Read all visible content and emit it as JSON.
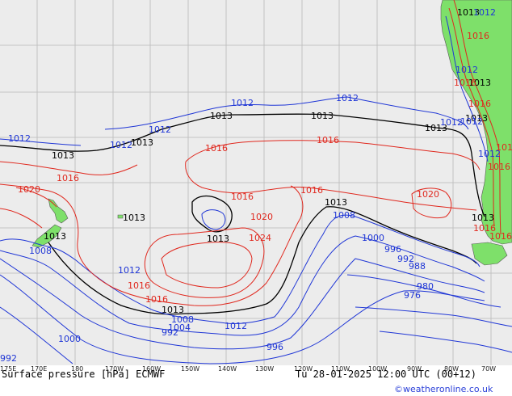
{
  "map": {
    "title": "Surface pressure [hPa] ECMWF",
    "valid_time": "Tu 28-01-2025 12:00 UTC (00+12)",
    "credit": "©weatheronline.co.uk",
    "longitude_ticks": [
      "175E",
      "170E",
      "180",
      "170W",
      "160W",
      "150W",
      "140W",
      "130W",
      "120W",
      "110W",
      "100W",
      "90W",
      "80W",
      "70W"
    ],
    "colors": {
      "ocean": "#ececec",
      "land": "#7ee06a",
      "grid": "#b8b8b8",
      "isobar_low": "#1f36d6",
      "isobar_mid": "#000000",
      "isobar_high": "#e0281e"
    },
    "isobar_labels": {
      "black": [
        "1013",
        "1013",
        "1013",
        "1013",
        "1013",
        "1013",
        "1013",
        "1013",
        "1013",
        "1013",
        "1013",
        "1013",
        "1013",
        "1013"
      ],
      "red": [
        "1016",
        "1016",
        "1016",
        "1016",
        "1020",
        "1016",
        "1020",
        "1024",
        "1016",
        "1016",
        "1016",
        "1016",
        "1020",
        "1016",
        "1016",
        "1016",
        "1016",
        "1016"
      ],
      "blue": [
        "1012",
        "1012",
        "1012",
        "1012",
        "1012",
        "1012",
        "1012",
        "1008",
        "1008",
        "1012",
        "1012",
        "1000",
        "996",
        "992",
        "988",
        "980",
        "976",
        "1008",
        "1004",
        "992",
        "996",
        "1000",
        "1012",
        "1012",
        "1012",
        "992"
      ]
    }
  }
}
